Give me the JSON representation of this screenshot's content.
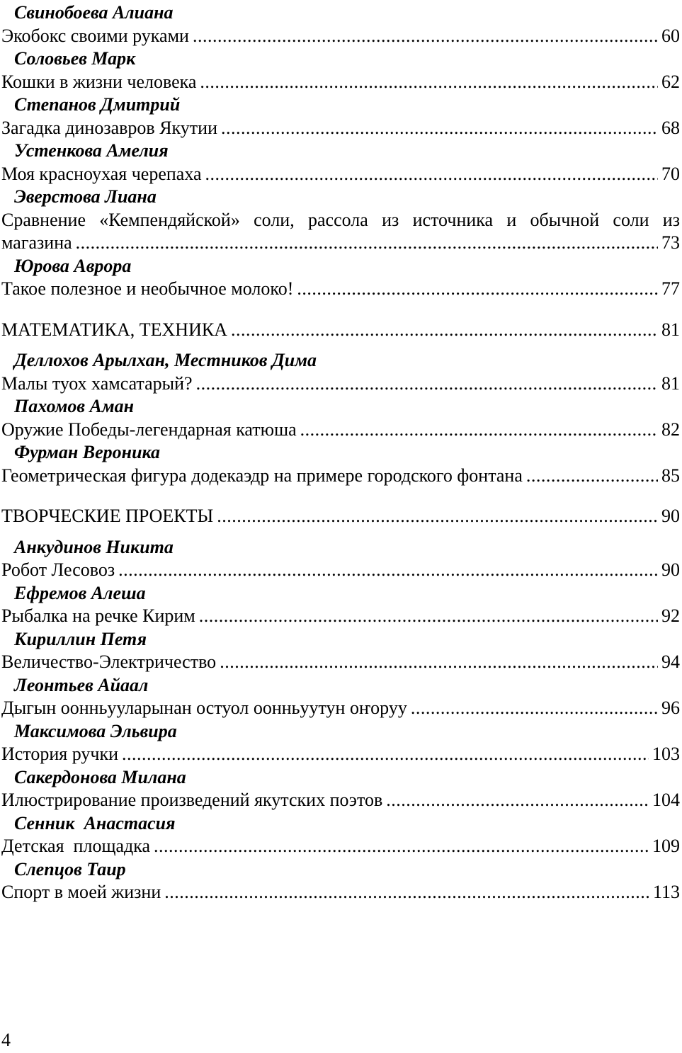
{
  "page": {
    "number": "4"
  },
  "toc": {
    "rows": [
      {
        "type": "author",
        "text": "Свинобоева Алиана"
      },
      {
        "type": "entry",
        "title": "Экобокс своими руками",
        "page": "60"
      },
      {
        "type": "author",
        "text": "Соловьев Марк"
      },
      {
        "type": "entry",
        "title": "Кошки в жизни человека",
        "page": "62"
      },
      {
        "type": "author",
        "text": "Степанов Дмитрий"
      },
      {
        "type": "entry",
        "title": "Загадка динозавров Якутии",
        "page": "68"
      },
      {
        "type": "author",
        "text": "Устенкова Амелия"
      },
      {
        "type": "entry",
        "title": "Моя красноухая черепаха",
        "page": "70"
      },
      {
        "type": "author",
        "text": "Эверстова Лиана"
      },
      {
        "type": "entry2",
        "line1": "Сравнение «Кемпендяйской» соли, рассола из источника и обычной соли из",
        "line2": "магазина",
        "page": "73"
      },
      {
        "type": "author",
        "text": "Юрова Аврора"
      },
      {
        "type": "entry",
        "title": "Такое полезное и необычное молоко!",
        "page": "77"
      },
      {
        "type": "section",
        "title": "МАТЕМАТИКА, ТЕХНИКА",
        "page": "81"
      },
      {
        "type": "author",
        "text": "Деллохов Арылхан, Местников Дима"
      },
      {
        "type": "entry",
        "title": "Малы туох хамсатарый?",
        "page": "81"
      },
      {
        "type": "author",
        "text": "Пахомов Аман"
      },
      {
        "type": "entry",
        "title": "Оружие Победы-легендарная катюша",
        "page": "82"
      },
      {
        "type": "author",
        "text": "Фурман Вероника"
      },
      {
        "type": "entry",
        "title": "Геометрическая фигура додекаэдр на примере городского фонтана",
        "page": "85"
      },
      {
        "type": "section",
        "title": "ТВОРЧЕСКИЕ ПРОЕКТЫ",
        "page": "90"
      },
      {
        "type": "author",
        "text": "Анкудинов Никита"
      },
      {
        "type": "entry",
        "title": "Робот Лесовоз",
        "page": "90"
      },
      {
        "type": "author",
        "text": "Ефремов Алеша"
      },
      {
        "type": "entry",
        "title": "Рыбалка на речке Кирим",
        "page": "92"
      },
      {
        "type": "author",
        "text": "Кириллин Петя"
      },
      {
        "type": "entry",
        "title": "Величество-Электричество",
        "page": "94"
      },
      {
        "type": "author",
        "text": "Леонтьев Айаал"
      },
      {
        "type": "entry",
        "title": "Дыгын оонньууларынан остуол оонньуутун оҥоруу",
        "page": "96"
      },
      {
        "type": "author",
        "text": "Максимова Эльвира"
      },
      {
        "type": "entry",
        "title": "История ручки",
        "page": "103"
      },
      {
        "type": "author",
        "text": "Сакердонова Милана"
      },
      {
        "type": "entry",
        "title": "Илюстрирование произведений якутских поэтов",
        "page": "104"
      },
      {
        "type": "author",
        "text": "Сенник  Анастасия"
      },
      {
        "type": "entry",
        "title": "Детская  площадка",
        "page": "109"
      },
      {
        "type": "author",
        "text": "Слепцов Таир"
      },
      {
        "type": "entry",
        "title": "Спорт в моей жизни",
        "page": "113"
      }
    ]
  }
}
